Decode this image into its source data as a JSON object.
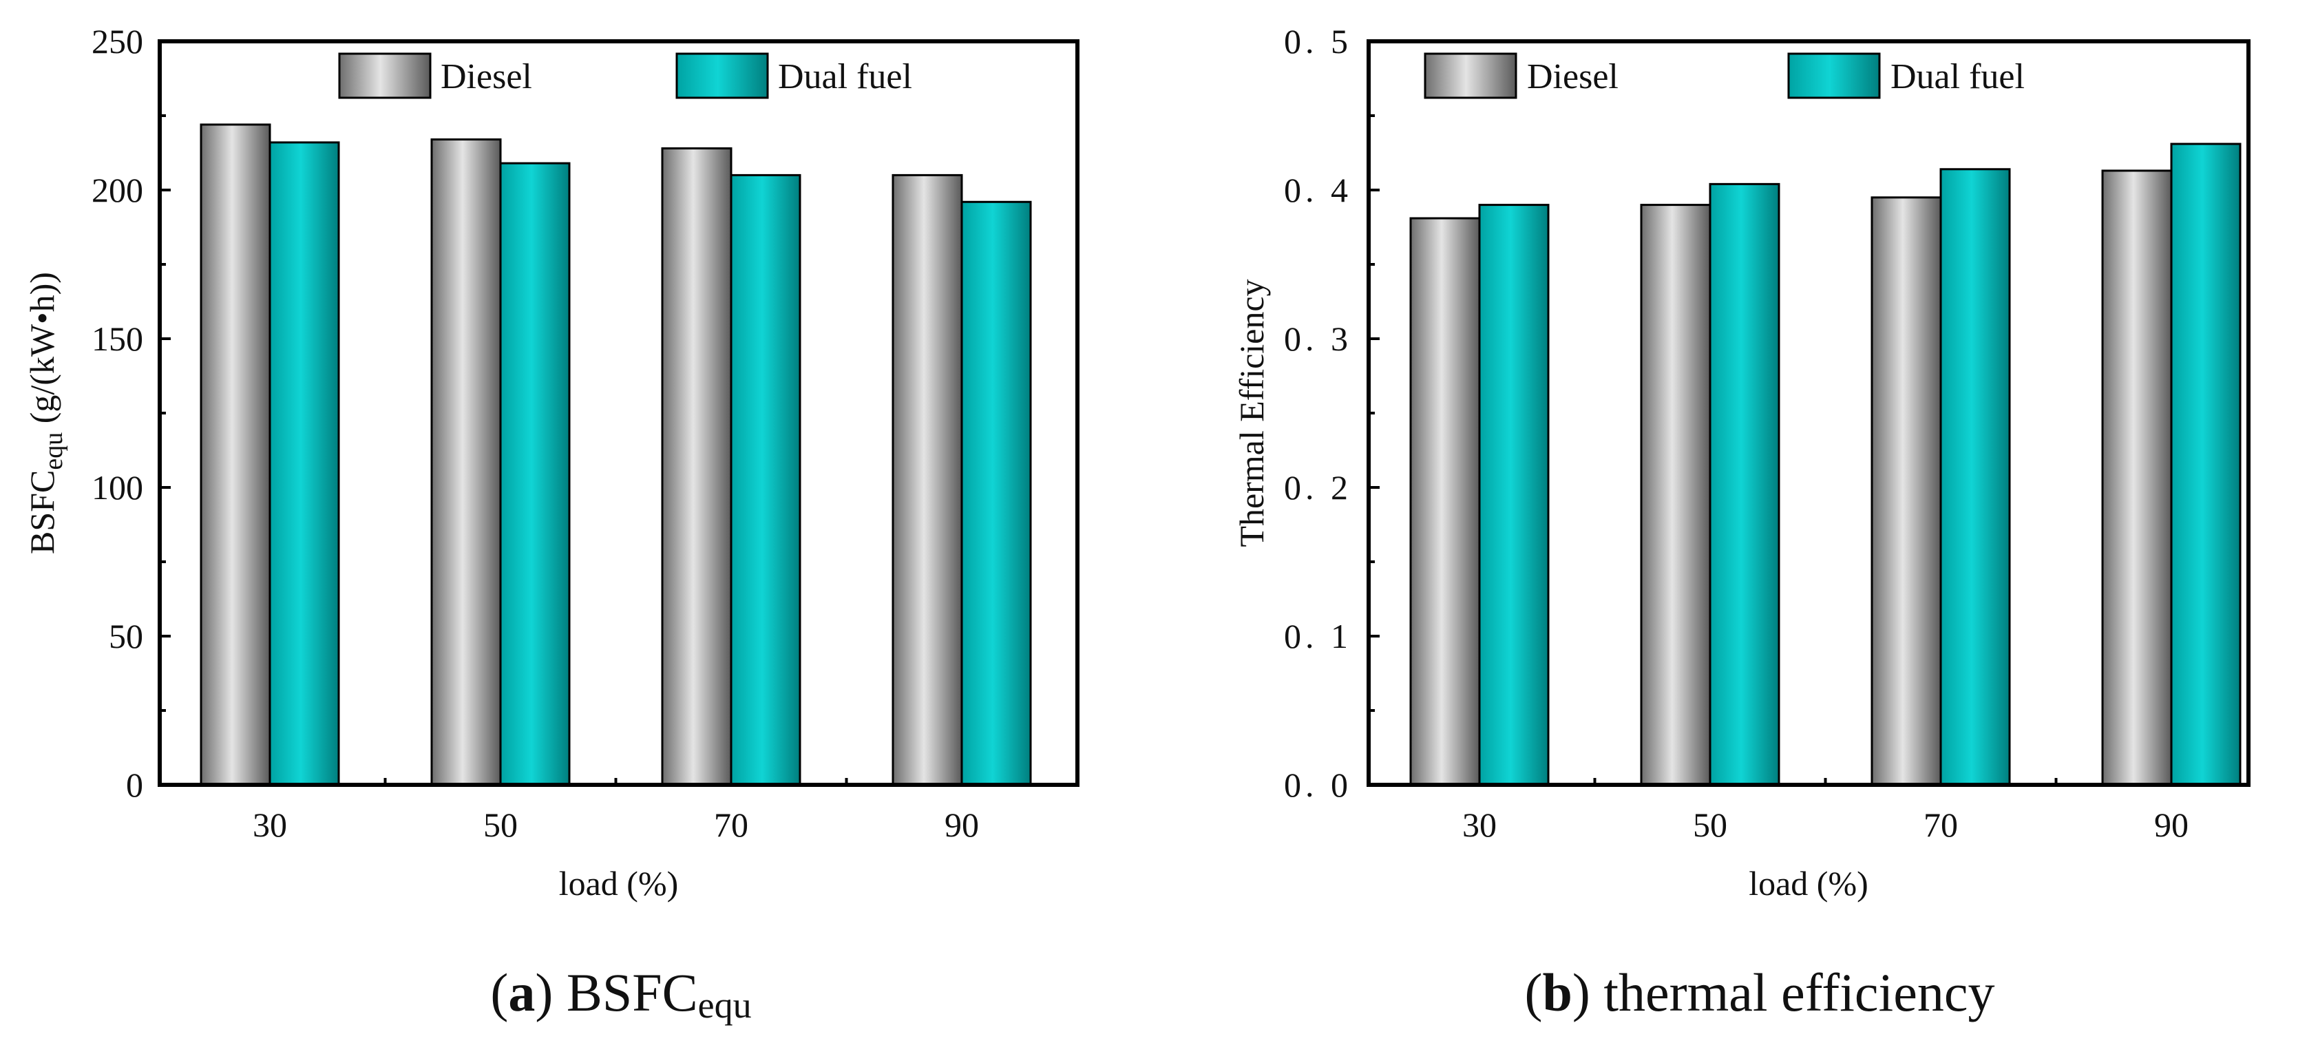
{
  "colors": {
    "diesel": "#a8a8a8",
    "dual_fuel": "#00b8b8",
    "axis": "#000000",
    "text": "#111111"
  },
  "chart_data": [
    {
      "type": "bar",
      "panel": "a",
      "categories": [
        "30",
        "50",
        "70",
        "90"
      ],
      "series": [
        {
          "name": "Diesel",
          "values": [
            222,
            217,
            214,
            205
          ]
        },
        {
          "name": "Dual fuel",
          "values": [
            216,
            209,
            205,
            196
          ]
        }
      ],
      "xlabel": "load (%)",
      "ylabel_main": "BSFC",
      "ylabel_sub": "equ",
      "ylabel_unit": " (g/(kW•h))",
      "ylim": [
        0,
        250
      ],
      "yticks": [
        "0",
        "50",
        "100",
        "150",
        "200",
        "250"
      ],
      "legend_position": "top",
      "caption": {
        "letter": "a",
        "text": "BSFC",
        "sub": "equ"
      }
    },
    {
      "type": "bar",
      "panel": "b",
      "categories": [
        "30",
        "50",
        "70",
        "90"
      ],
      "series": [
        {
          "name": "Diesel",
          "values": [
            0.381,
            0.39,
            0.395,
            0.413
          ]
        },
        {
          "name": "Dual fuel",
          "values": [
            0.39,
            0.404,
            0.414,
            0.431
          ]
        }
      ],
      "xlabel": "load (%)",
      "ylabel": "Thermal Efficiency",
      "ylim": [
        0,
        0.5
      ],
      "yticks": [
        "0. 0",
        "0. 1",
        "0. 2",
        "0. 3",
        "0. 4",
        "0. 5"
      ],
      "legend_position": "top",
      "caption": {
        "letter": "b",
        "text": "thermal efficiency"
      }
    }
  ]
}
